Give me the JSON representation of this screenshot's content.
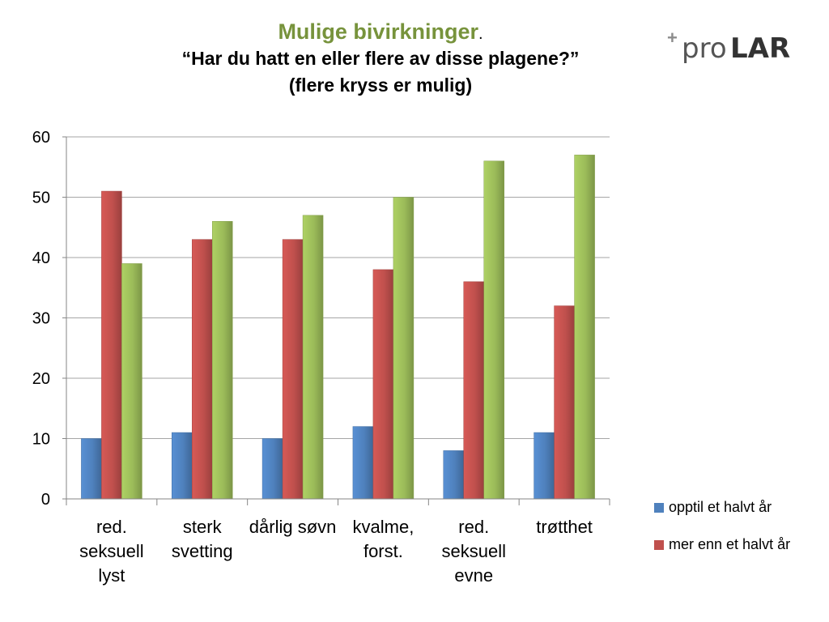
{
  "header": {
    "title": "Mulige bivirkninger",
    "title_suffix": ".",
    "subtitle_line1": "“Har du hatt en eller flere av disse plagene?”",
    "subtitle_line2": "(flere kryss er mulig)"
  },
  "logo": {
    "plus": "+",
    "pro": "pro",
    "lar": "LAR"
  },
  "colors": {
    "title": "#77933c",
    "blue": "#4f81bd",
    "red": "#c0504d",
    "green": "#9bbb59"
  },
  "chart_data": {
    "type": "bar",
    "title": "",
    "xlabel": "",
    "ylabel": "",
    "ylim": [
      0,
      60
    ],
    "yticks": [
      0,
      10,
      20,
      30,
      40,
      50,
      60
    ],
    "grid": true,
    "legend_position": "right-bottom",
    "categories": [
      [
        "red.",
        "seksuell",
        "lyst"
      ],
      [
        "sterk",
        "svetting"
      ],
      [
        "dårlig søvn"
      ],
      [
        "kvalme,",
        "forst."
      ],
      [
        "red.",
        "seksuell",
        "evne"
      ],
      [
        "trøtthet"
      ]
    ],
    "series": [
      {
        "name": "opptil et halvt år",
        "color": "#4f81bd",
        "values": [
          10,
          11,
          10,
          12,
          8,
          11
        ]
      },
      {
        "name": "mer enn et halvt år",
        "color": "#c0504d",
        "values": [
          51,
          43,
          43,
          38,
          36,
          32
        ]
      },
      {
        "name": "",
        "color": "#9bbb59",
        "values": [
          39,
          46,
          47,
          50,
          56,
          57
        ]
      }
    ]
  },
  "legend": [
    {
      "label": "opptil et halvt år",
      "color": "#4f81bd"
    },
    {
      "label": "mer enn et halvt år",
      "color": "#c0504d"
    }
  ]
}
